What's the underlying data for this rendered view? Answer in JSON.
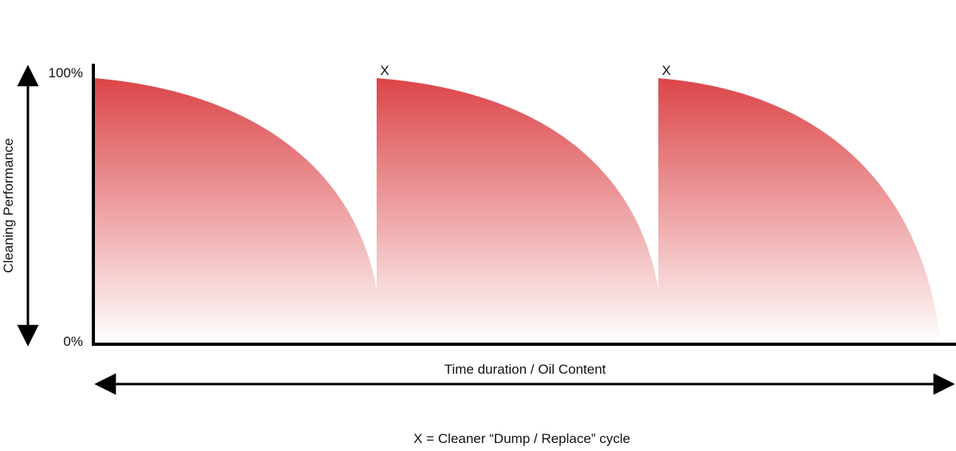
{
  "chart_data": {
    "type": "area",
    "ylabel": "Cleaning Performance",
    "xlabel": "Time duration / Oil Content",
    "y_tick_labels": [
      "100%",
      "0%"
    ],
    "ylim": [
      0,
      100
    ],
    "cycle_marker": "X",
    "footnote": "X = Cleaner “Dump / Replace” cycle",
    "grid": false,
    "series": [
      {
        "values": [
          {
            "x": 0,
            "y": 98
          },
          {
            "x": 0.5,
            "y": 84
          },
          {
            "x": 0.9,
            "y": 54
          },
          {
            "x": 1.0,
            "y": 20
          }
        ],
        "end_marker": false
      },
      {
        "values": [
          {
            "x": 1.0,
            "y": 98
          },
          {
            "x": 1.5,
            "y": 86
          },
          {
            "x": 1.9,
            "y": 56
          },
          {
            "x": 2.0,
            "y": 20
          }
        ],
        "start_marker": true
      },
      {
        "values": [
          {
            "x": 2.0,
            "y": 98
          },
          {
            "x": 2.5,
            "y": 85
          },
          {
            "x": 2.9,
            "y": 50
          },
          {
            "x": 3.0,
            "y": 3
          }
        ],
        "start_marker": true
      }
    ],
    "colors": {
      "fill_top": "#dc4549",
      "fill_bottom": "#ffffff",
      "axis": "#000000"
    }
  }
}
